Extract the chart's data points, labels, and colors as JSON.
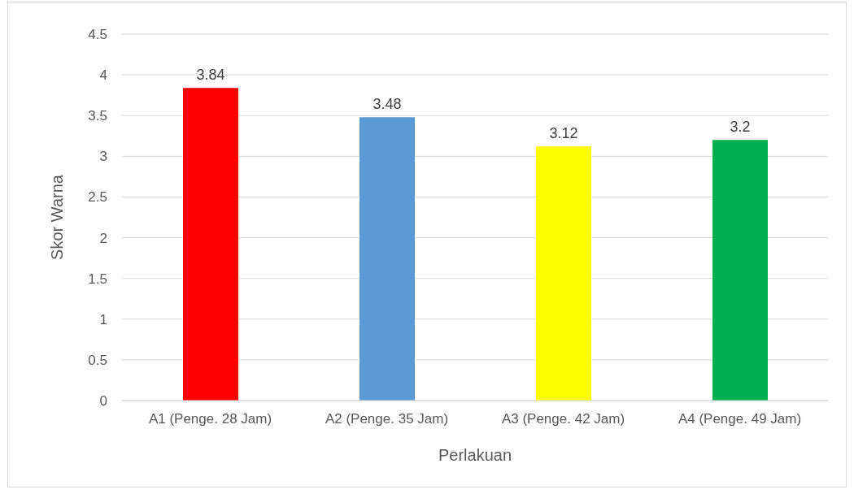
{
  "chart_data": {
    "type": "bar",
    "xlabel": "Perlakuan",
    "ylabel": "Skor Warna",
    "categories": [
      "A1 (Penge. 28 Jam)",
      "A2 (Penge. 35 Jam)",
      "A3 (Penge. 42 Jam)",
      "A4 (Penge. 49 Jam)"
    ],
    "values": [
      3.84,
      3.48,
      3.12,
      3.2
    ],
    "colors": [
      "#ff0000",
      "#5b9bd5",
      "#ffff00",
      "#00b050"
    ],
    "ylim": [
      0,
      4.5
    ],
    "yticks": [
      0,
      0.5,
      1,
      1.5,
      2,
      2.5,
      3,
      3.5,
      4,
      4.5
    ],
    "grid": "y",
    "data_labels": true
  }
}
